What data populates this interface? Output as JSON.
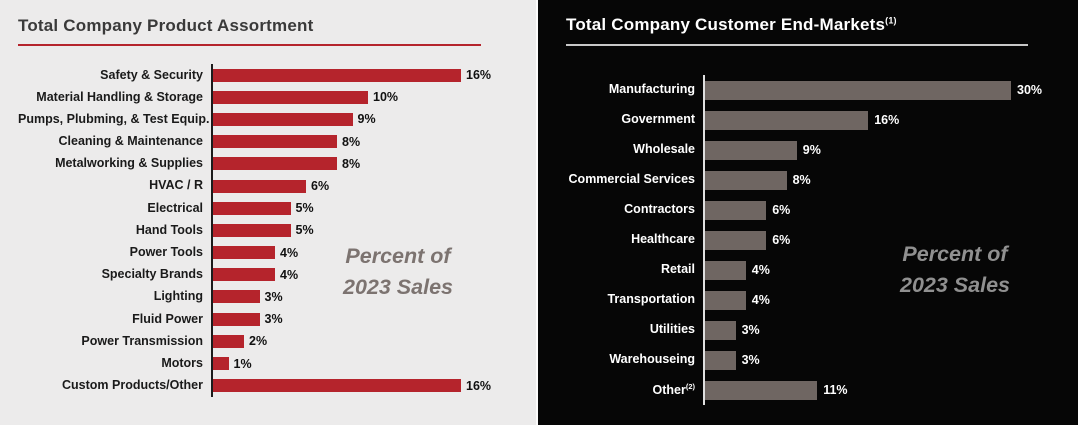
{
  "left_panel": {
    "title": "Total Company Product Assortment",
    "annotation_line1": "Percent of",
    "annotation_line2": "2023 Sales"
  },
  "right_panel": {
    "title": "Total Company Customer End-Markets",
    "title_superscript": "(1)",
    "annotation_line1": "Percent of",
    "annotation_line2": "2023 Sales"
  },
  "colors": {
    "left_bar_red": "#B5242C",
    "right_bar_taupe": "#6F6662",
    "left_bg": "#ECEBEB",
    "right_bg": "#060606",
    "annotation_gray_left": "#7C7370",
    "annotation_gray_right": "#909090"
  },
  "chart_data": [
    {
      "id": "product-assortment",
      "type": "bar",
      "orientation": "horizontal",
      "title": "Total Company Product Assortment",
      "annotation": "Percent of 2023 Sales",
      "unit": "%",
      "xlim": [
        0,
        17
      ],
      "categories": [
        "Safety & Security",
        "Material Handling & Storage",
        "Pumps, Plubming, & Test Equip.",
        "Cleaning & Maintenance",
        "Metalworking & Supplies",
        "HVAC / R",
        "Electrical",
        "Hand Tools",
        "Power Tools",
        "Specialty Brands",
        "Lighting",
        "Fluid Power",
        "Power Transmission",
        "Motors",
        "Custom Products/Other"
      ],
      "values": [
        16,
        10,
        9,
        8,
        8,
        6,
        5,
        5,
        4,
        4,
        3,
        3,
        2,
        1,
        16
      ],
      "value_labels": [
        "16%",
        "10%",
        "9%",
        "8%",
        "8%",
        "6%",
        "5%",
        "5%",
        "4%",
        "4%",
        "3%",
        "3%",
        "2%",
        "1%",
        "16%"
      ]
    },
    {
      "id": "customer-end-markets",
      "type": "bar",
      "orientation": "horizontal",
      "title": "Total Company Customer End-Markets(1)",
      "annotation": "Percent of 2023 Sales",
      "unit": "%",
      "xlim": [
        0,
        32
      ],
      "categories": [
        "Manufacturing",
        "Government",
        "Wholesale",
        "Commercial Services",
        "Contractors",
        "Healthcare",
        "Retail",
        "Transportation",
        "Utilities",
        "Warehouseing",
        "Other"
      ],
      "category_superscripts": {
        "Other": "(2)"
      },
      "values": [
        30,
        16,
        9,
        8,
        6,
        6,
        4,
        4,
        3,
        3,
        11
      ],
      "value_labels": [
        "30%",
        "16%",
        "9%",
        "8%",
        "6%",
        "6%",
        "4%",
        "4%",
        "3%",
        "3%",
        "11%"
      ]
    }
  ]
}
